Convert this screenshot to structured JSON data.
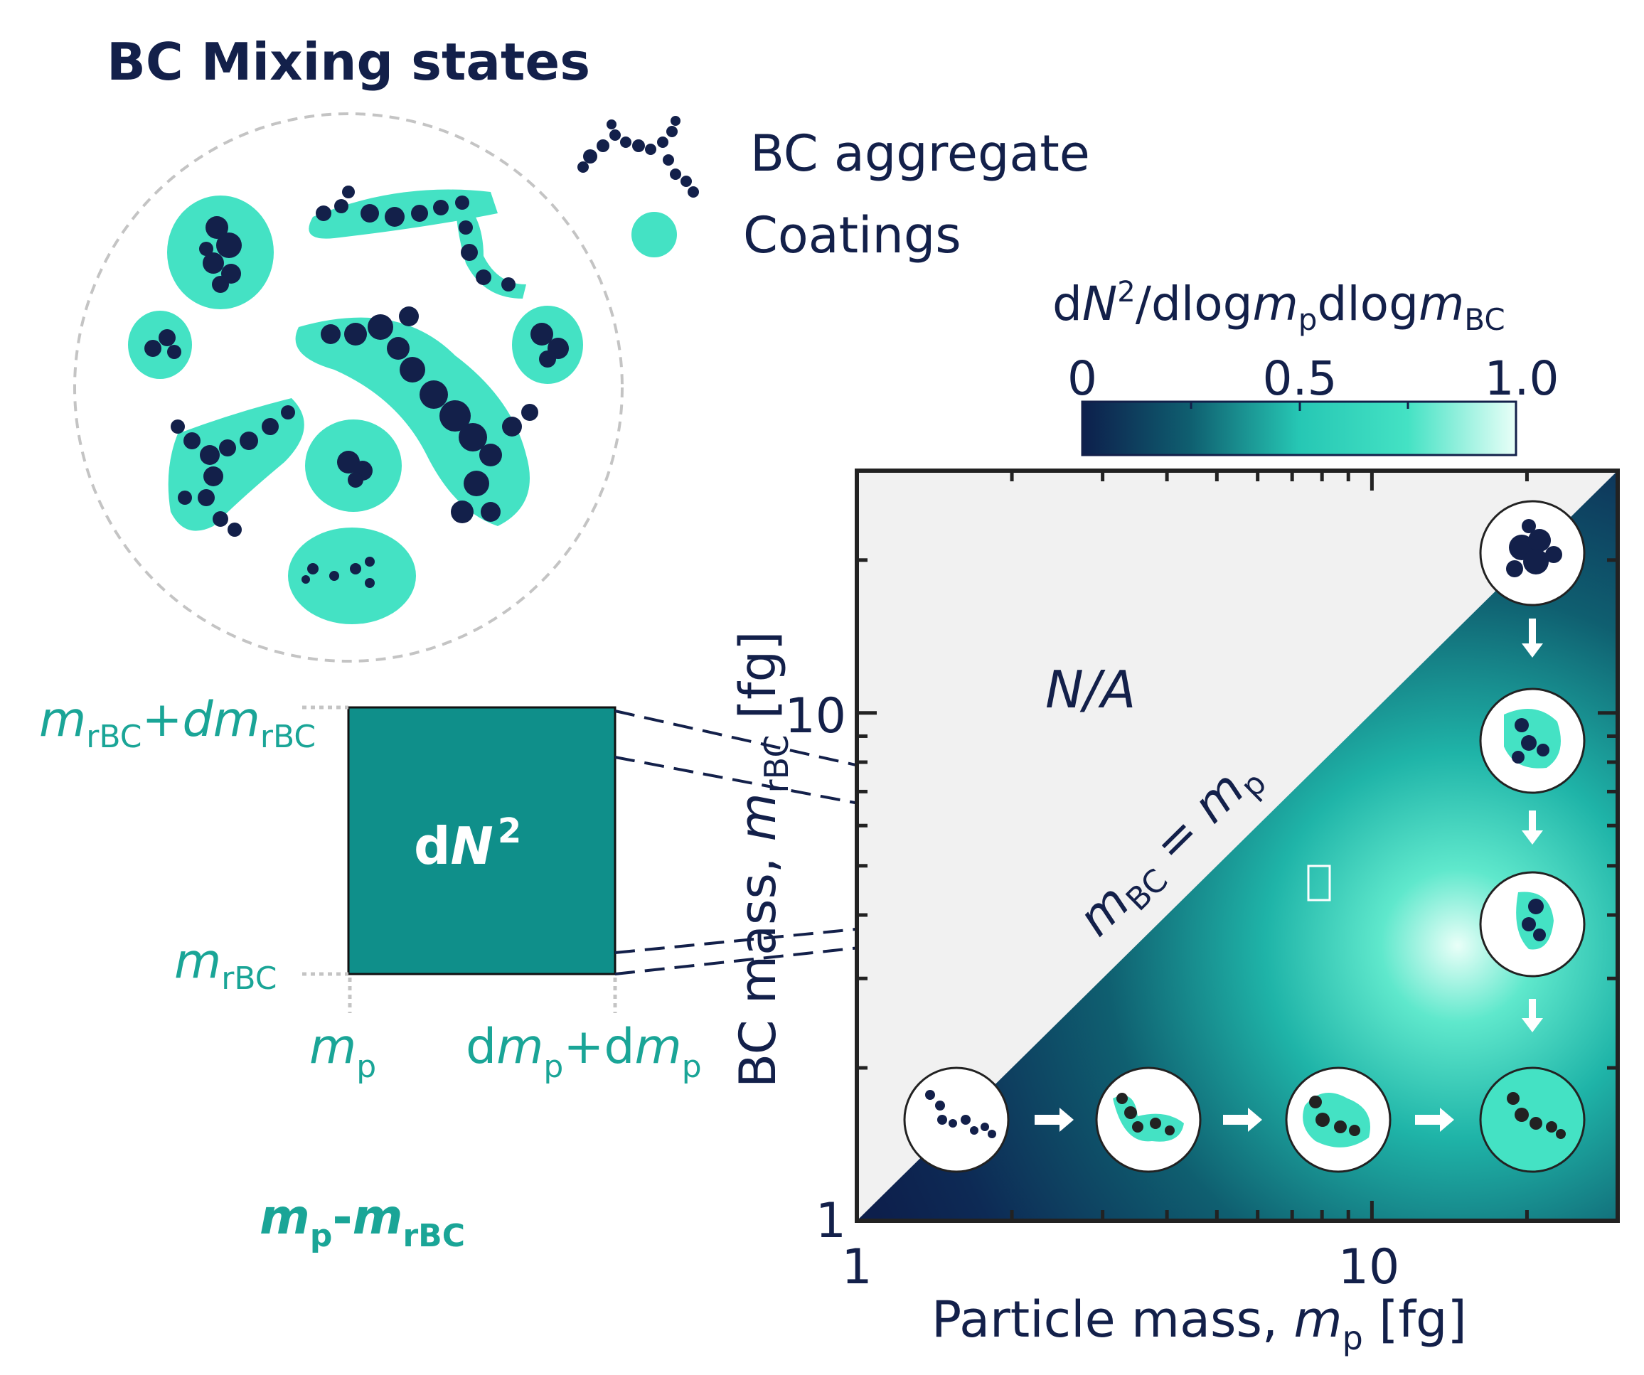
{
  "title": "BC Mixing states",
  "legend": {
    "aggregate_label": "BC aggregate",
    "coating_label": "Coatings"
  },
  "colorbar": {
    "label_d": "d",
    "label_N": "N",
    "label_sup": "2",
    "label_mid": "/dlog",
    "label_m": "m",
    "label_p": "p",
    "label_dlog2": "dlog",
    "label_m2": "m",
    "label_bc": "BC",
    "ticks": [
      "0",
      "0.5",
      "1.0"
    ],
    "colors": [
      "#0d1f4c",
      "#0f5f70",
      "#26c7b4",
      "#44e2c4",
      "#e9fff8"
    ]
  },
  "bin_box": {
    "label_d": "d",
    "label_N": "N",
    "label_sup": "2",
    "top_m": "m",
    "top_sub": "rBC",
    "top_plus": "+",
    "top_dm": "dm",
    "top_sub2": "rBC",
    "bottom_m": "m",
    "bottom_sub": "rBC",
    "mp_m": "m",
    "mp_sub": "p",
    "dmp_d": "d",
    "dmp_m": "m",
    "dmp_sub": "p",
    "dmp_plus": "+d",
    "dmp_m2": "m",
    "dmp_sub2": "p",
    "caption_m1": "m",
    "caption_sub1": "p",
    "caption_dash": "-",
    "caption_m2": "m",
    "caption_sub2": "rBC",
    "box_color": "#0f8f8a"
  },
  "plot": {
    "na_label": "N/A",
    "diag_m1": "m",
    "diag_sub1": "BC",
    "diag_eq": " = ",
    "diag_m2": "m",
    "diag_sub2": "p",
    "xlabel_text": "Particle mass, ",
    "xlabel_m": "m",
    "xlabel_sub": "p",
    "xlabel_unit": " [fg]",
    "ylabel_text": "BC mass, ",
    "ylabel_m": "m",
    "ylabel_sub": "rBC",
    "ylabel_unit": " [fg]",
    "x_tick_labels": [
      "1",
      "10"
    ],
    "y_tick_labels": [
      "1",
      "10"
    ],
    "upper_fill": "#f1f1f1",
    "lower_fill": "#0d1f4c"
  },
  "chart_data": {
    "type": "heatmap",
    "xlabel": "Particle mass, mp [fg]",
    "ylabel": "BC mass, mrBC [fg]",
    "x_scale": "log",
    "y_scale": "log",
    "xlim": [
      1,
      30
    ],
    "ylim": [
      1,
      30
    ],
    "colorbar_label": "dN2/dlogmpdlogmBC",
    "colorbar_range": [
      0,
      1.0
    ],
    "peak": {
      "x": 15,
      "y": 3.5
    },
    "region_above_diagonal": "N/A",
    "diagonal": "mBC = mp"
  }
}
